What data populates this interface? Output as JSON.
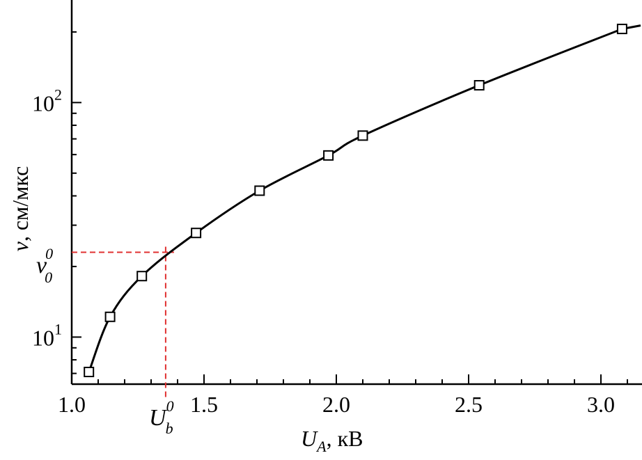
{
  "chart_data": {
    "type": "scatter",
    "xlabel": {
      "var": "U",
      "sub": "A",
      "unit": ", кВ"
    },
    "ylabel": {
      "var": "v",
      "unit": ", см/мкс"
    },
    "xlim": [
      1.0,
      3.15
    ],
    "ylim": [
      6.3,
      270
    ],
    "yscale": "log",
    "xticks": [
      {
        "value": 1.0,
        "label": "1.0"
      },
      {
        "value": 1.5,
        "label": "1.5"
      },
      {
        "value": 2.0,
        "label": "2.0"
      },
      {
        "value": 2.5,
        "label": "2.5"
      },
      {
        "value": 3.0,
        "label": "3.0"
      }
    ],
    "yticks": [
      {
        "value": 10,
        "base": "10",
        "exp": "1"
      },
      {
        "value": 100,
        "base": "10",
        "exp": "2"
      }
    ],
    "series": [
      {
        "marker": "open-square",
        "line": "smooth",
        "color": "#000000",
        "x": [
          1.065,
          1.145,
          1.265,
          1.47,
          1.71,
          1.97,
          2.1,
          2.54,
          3.08
        ],
        "y": [
          7.1,
          12.2,
          18.2,
          27.8,
          42.1,
          59.5,
          72.3,
          118.5,
          206
        ]
      }
    ],
    "annotations": {
      "v0": {
        "symbol": "v",
        "sup": "0",
        "sub": "0",
        "value": 23.0,
        "color": "#e03030"
      },
      "ub0": {
        "symbol": "U",
        "sup": "0",
        "sub": "b",
        "value": 1.355,
        "color": "#e03030"
      }
    },
    "grid": false,
    "legend": "none"
  }
}
